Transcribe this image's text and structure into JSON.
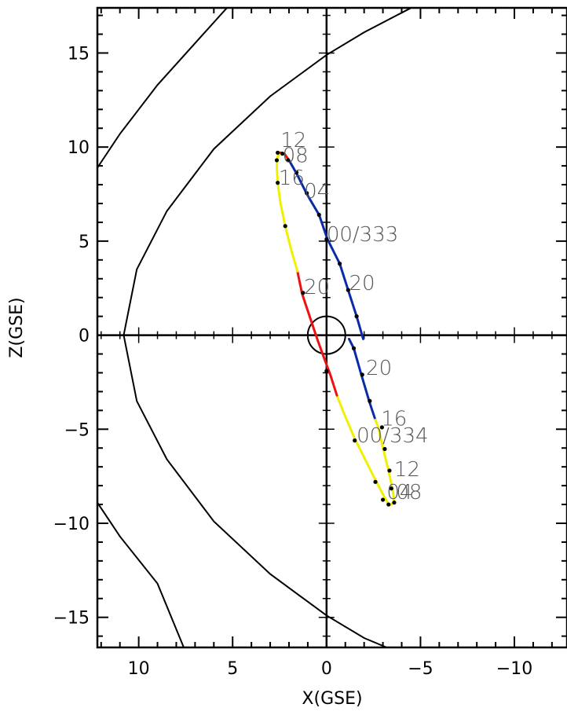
{
  "chart_data": {
    "type": "line",
    "title": "",
    "xlabel": "X(GSE)",
    "ylabel": "Z(GSE)",
    "xlim": [
      12.2,
      -12.8
    ],
    "ylim": [
      -16.6,
      17.4
    ],
    "x_ticks": [
      10,
      5,
      0,
      -5,
      -10
    ],
    "y_ticks": [
      15,
      10,
      5,
      0,
      -5,
      -10,
      -15
    ],
    "x_tick_labels": [
      "10",
      "5",
      "0",
      "−5",
      "−10"
    ],
    "y_tick_labels": [
      "15",
      "10",
      "5",
      "0",
      "−5",
      "−10",
      "−15"
    ],
    "grid": false,
    "colors": {
      "orbit_red": "#ee1111",
      "orbit_yellow": "#f0f000",
      "orbit_blue": "#0a2aa8",
      "boundary": "#000000"
    },
    "earth_radius": 1,
    "boundaries": [
      {
        "name": "",
        "points": [
          [
            12.2,
            8.9
          ],
          [
            11,
            10.7
          ],
          [
            9,
            13.3
          ],
          [
            7.2,
            15.3
          ],
          [
            5.3,
            17.4
          ]
        ]
      },
      {
        "name": "",
        "points": [
          [
            12.2,
            -8.9
          ],
          [
            11,
            -10.7
          ],
          [
            9,
            -13.2
          ],
          [
            7.6,
            -16.6
          ]
        ]
      },
      {
        "name": "",
        "points": [
          [
            -4.5,
            17.4
          ],
          [
            -2,
            16.1
          ],
          [
            0,
            14.9
          ],
          [
            3,
            12.7
          ],
          [
            6,
            9.9
          ],
          [
            8.5,
            6.6
          ],
          [
            10.1,
            3.5
          ],
          [
            10.8,
            0
          ],
          [
            10.1,
            -3.5
          ],
          [
            8.5,
            -6.6
          ],
          [
            6,
            -9.9
          ],
          [
            3,
            -12.7
          ],
          [
            0,
            -14.9
          ],
          [
            -2,
            -16.1
          ],
          [
            -3.2,
            -16.6
          ]
        ]
      }
    ],
    "series": [
      {
        "color": "yellow",
        "points": [
          [
            -3.3,
            -9.0
          ],
          [
            -3.05,
            -8.55
          ],
          [
            -2.5,
            -7.5
          ],
          [
            -2.0,
            -6.5
          ],
          [
            -1.5,
            -5.5
          ],
          [
            -0.9,
            -4.1
          ],
          [
            -0.55,
            -3.2
          ]
        ]
      },
      {
        "color": "red",
        "points": [
          [
            -0.55,
            -3.2
          ],
          [
            -0.2,
            -2.1
          ],
          [
            0.1,
            -1.3
          ],
          [
            0.5,
            -0.2
          ],
          [
            1.0,
            1.3
          ],
          [
            1.3,
            2.2
          ],
          [
            1.55,
            3.4
          ]
        ]
      },
      {
        "color": "yellow",
        "points": [
          [
            1.55,
            3.4
          ],
          [
            1.9,
            4.6
          ],
          [
            2.2,
            5.8
          ],
          [
            2.45,
            7.0
          ],
          [
            2.6,
            8.1
          ],
          [
            2.65,
            9.0
          ],
          [
            2.6,
            9.5
          ],
          [
            2.45,
            9.7
          ]
        ]
      },
      {
        "color": "red",
        "points": [
          [
            2.45,
            9.7
          ],
          [
            2.25,
            9.65
          ],
          [
            2.0,
            9.3
          ]
        ]
      },
      {
        "color": "blue",
        "points": [
          [
            2.0,
            9.3
          ],
          [
            1.6,
            8.6
          ],
          [
            1.05,
            7.5
          ],
          [
            0.4,
            6.4
          ],
          [
            -0.05,
            5.1
          ],
          [
            -0.7,
            3.8
          ],
          [
            -1.15,
            2.4
          ],
          [
            -1.6,
            1.0
          ],
          [
            -1.95,
            -0.2
          ]
        ]
      },
      {
        "color": "blue",
        "points": [
          [
            -1.2,
            -0.2
          ],
          [
            -1.45,
            -0.7
          ],
          [
            -1.85,
            -2.1
          ],
          [
            -2.3,
            -3.6
          ],
          [
            -2.6,
            -4.5
          ]
        ]
      },
      {
        "color": "yellow",
        "points": [
          [
            -2.6,
            -4.5
          ],
          [
            -2.75,
            -4.9
          ],
          [
            -3.0,
            -6.0
          ],
          [
            -3.3,
            -7.2
          ],
          [
            -3.55,
            -8.4
          ],
          [
            -3.6,
            -8.9
          ],
          [
            -3.35,
            -9.05
          ]
        ]
      }
    ],
    "markers": [
      [
        2.6,
        9.7
      ],
      [
        2.35,
        9.65
      ],
      [
        2.05,
        9.3
      ],
      [
        1.6,
        8.65
      ],
      [
        1.05,
        7.55
      ],
      [
        0.4,
        6.4
      ],
      [
        0.0,
        5.1
      ],
      [
        -0.7,
        3.8
      ],
      [
        -1.15,
        2.4
      ],
      [
        -1.6,
        1.0
      ],
      [
        2.65,
        9.3
      ],
      [
        2.6,
        8.1
      ],
      [
        2.2,
        5.8
      ],
      [
        1.25,
        2.25
      ],
      [
        -1.45,
        -0.7
      ],
      [
        -1.9,
        -2.1
      ],
      [
        -2.3,
        -3.5
      ],
      [
        -2.95,
        -4.9
      ],
      [
        -3.1,
        -6.05
      ],
      [
        -3.35,
        -7.2
      ],
      [
        -3.45,
        -8.15
      ],
      [
        -3.6,
        -8.9
      ],
      [
        -3.3,
        -9.0
      ],
      [
        -3.0,
        -8.75
      ],
      [
        -2.6,
        -7.8
      ],
      [
        -1.5,
        -5.6
      ],
      [
        0.0,
        -1.9
      ]
    ],
    "annotations": [
      {
        "text": "12",
        "x": 2.45,
        "y": 10.0
      },
      {
        "text": "08",
        "x": 2.35,
        "y": 9.2
      },
      {
        "text": "16",
        "x": 2.55,
        "y": 8.0
      },
      {
        "text": "04",
        "x": 1.2,
        "y": 7.3
      },
      {
        "text": "00/333",
        "x": 0.0,
        "y": 5.0
      },
      {
        "text": "20",
        "x": 1.2,
        "y": 2.2
      },
      {
        "text": "20",
        "x": -1.2,
        "y": 2.4
      },
      {
        "text": "20",
        "x": -2.1,
        "y": -2.1
      },
      {
        "text": "16",
        "x": -2.9,
        "y": -4.8
      },
      {
        "text": "00/334",
        "x": -1.6,
        "y": -5.7
      },
      {
        "text": "12",
        "x": -3.6,
        "y": -7.5
      },
      {
        "text": "04",
        "x": -3.2,
        "y": -8.7
      },
      {
        "text": "08",
        "x": -3.7,
        "y": -8.7
      }
    ]
  }
}
